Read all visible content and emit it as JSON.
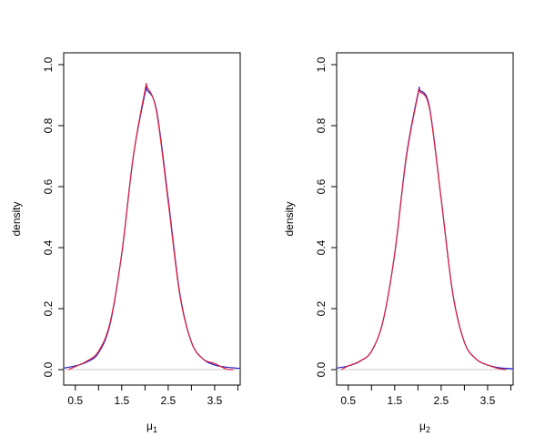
{
  "chart_data": [
    {
      "type": "line",
      "xlabel": "μ",
      "xlabel_subscript": "1",
      "ylabel": "density",
      "xlim": [
        0.25,
        4.05
      ],
      "ylim": [
        0,
        1.0
      ],
      "x_ticks": [
        0.5,
        1.0,
        1.5,
        2.0,
        2.5,
        3.0,
        3.5,
        4.0
      ],
      "x_tick_labels": [
        "0.5",
        "",
        "1.5",
        "",
        "2.5",
        "",
        "3.5",
        ""
      ],
      "y_ticks": [
        0.0,
        0.2,
        0.4,
        0.6,
        0.8,
        1.0
      ],
      "y_tick_labels": [
        "0.0",
        "0.2",
        "0.4",
        "0.6",
        "0.8",
        "1.0"
      ],
      "baseline": 0,
      "colors": {
        "blue": "#2020d0",
        "red": "#e0203c",
        "baseline": "#c8c8c8"
      },
      "series": [
        {
          "color": "blue",
          "x": [
            0.25,
            0.5,
            0.75,
            1.0,
            1.25,
            1.5,
            1.75,
            2.0,
            2.05,
            2.25,
            2.5,
            2.75,
            3.0,
            3.25,
            3.5,
            3.75,
            4.05
          ],
          "y": [
            0.005,
            0.012,
            0.025,
            0.055,
            0.15,
            0.38,
            0.7,
            0.905,
            0.915,
            0.85,
            0.56,
            0.25,
            0.09,
            0.035,
            0.015,
            0.008,
            0.004
          ]
        },
        {
          "color": "red",
          "x": [
            0.35,
            0.5,
            0.75,
            1.0,
            1.25,
            1.5,
            1.75,
            2.0,
            2.05,
            2.25,
            2.5,
            2.75,
            3.0,
            3.25,
            3.5,
            3.75,
            3.9
          ],
          "y": [
            0.0,
            0.01,
            0.028,
            0.06,
            0.155,
            0.38,
            0.7,
            0.915,
            0.925,
            0.845,
            0.55,
            0.245,
            0.09,
            0.035,
            0.02,
            0.002,
            0.0
          ]
        }
      ]
    },
    {
      "type": "line",
      "xlabel": "μ",
      "xlabel_subscript": "2",
      "ylabel": "density",
      "xlim": [
        0.25,
        4.05
      ],
      "ylim": [
        0,
        1.0
      ],
      "x_ticks": [
        0.5,
        1.0,
        1.5,
        2.0,
        2.5,
        3.0,
        3.5,
        4.0
      ],
      "x_tick_labels": [
        "0.5",
        "",
        "1.5",
        "",
        "2.5",
        "",
        "3.5",
        ""
      ],
      "y_ticks": [
        0.0,
        0.2,
        0.4,
        0.6,
        0.8,
        1.0
      ],
      "y_tick_labels": [
        "0.0",
        "0.2",
        "0.4",
        "0.6",
        "0.8",
        "1.0"
      ],
      "baseline": 0,
      "colors": {
        "blue": "#2020d0",
        "red": "#e0203c",
        "baseline": "#c8c8c8"
      },
      "series": [
        {
          "color": "blue",
          "x": [
            0.25,
            0.5,
            0.75,
            1.0,
            1.25,
            1.5,
            1.75,
            2.0,
            2.05,
            2.25,
            2.5,
            2.75,
            3.0,
            3.25,
            3.5,
            3.75,
            4.05
          ],
          "y": [
            0.005,
            0.012,
            0.027,
            0.06,
            0.16,
            0.38,
            0.7,
            0.905,
            0.915,
            0.86,
            0.56,
            0.25,
            0.09,
            0.035,
            0.015,
            0.006,
            0.003
          ]
        },
        {
          "color": "red",
          "x": [
            0.35,
            0.5,
            0.75,
            1.0,
            1.25,
            1.5,
            1.75,
            2.0,
            2.05,
            2.25,
            2.5,
            2.75,
            3.0,
            3.25,
            3.5,
            3.75,
            3.9
          ],
          "y": [
            0.0,
            0.012,
            0.028,
            0.06,
            0.16,
            0.38,
            0.695,
            0.9,
            0.91,
            0.855,
            0.56,
            0.25,
            0.09,
            0.035,
            0.015,
            0.003,
            0.0
          ]
        }
      ]
    }
  ]
}
